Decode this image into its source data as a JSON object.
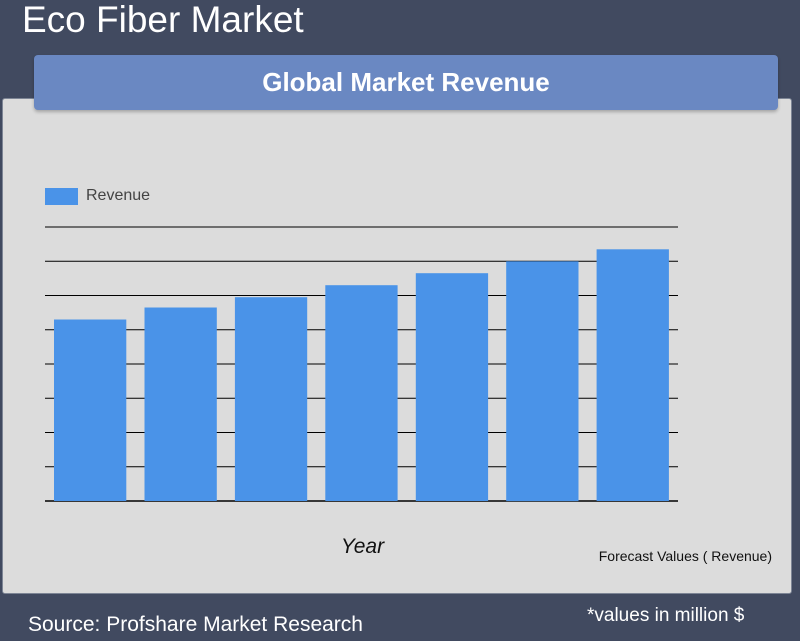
{
  "page": {
    "title": "Eco Fiber Market",
    "source": "Source: Profshare Market Research",
    "unit_note": "*values in million $"
  },
  "chart_data": {
    "type": "bar",
    "title": "Global Market Revenue",
    "xlabel": "Year",
    "ylabel": "",
    "note": "Forecast Values ( Revenue)",
    "categories": [
      "",
      "",
      "",
      "",
      "",
      "",
      ""
    ],
    "series": [
      {
        "name": "Revenue",
        "values": [
          5.3,
          5.65,
          5.95,
          6.3,
          6.65,
          7.0,
          7.35
        ],
        "color": "#4a93e8"
      }
    ],
    "ylim": [
      0,
      8
    ],
    "y_grid_step": 1,
    "grid": true,
    "legend": "top-left"
  }
}
